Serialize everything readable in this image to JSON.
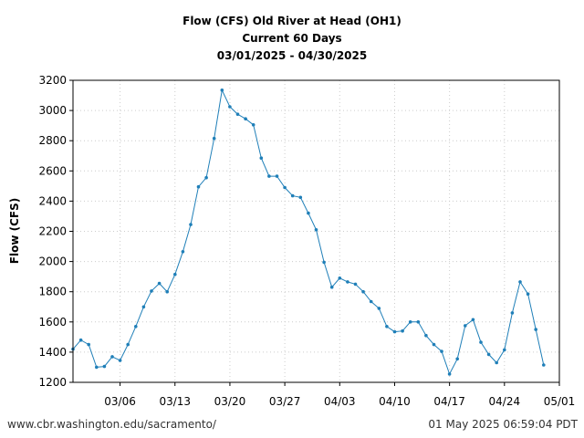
{
  "header": {
    "title_line1": "Flow (CFS) Old River at Head (OH1)",
    "title_line2": "Current 60 Days",
    "title_line3": "03/01/2025 - 04/30/2025"
  },
  "footer": {
    "source": "www.cbr.washington.edu/sacramento/",
    "timestamp": "01 May 2025 06:59:04 PDT"
  },
  "colors": {
    "series": "#1f7fb8",
    "grid": "#cccccc"
  },
  "chart_data": {
    "type": "line",
    "ylabel": "Flow (CFS)",
    "ylim": [
      1200,
      3200
    ],
    "y_ticks": [
      1200,
      1400,
      1600,
      1800,
      2000,
      2200,
      2400,
      2600,
      2800,
      3000,
      3200
    ],
    "x_range": [
      "2025-02-28",
      "2025-05-01"
    ],
    "x_ticks": [
      {
        "date": "2025-03-06",
        "label": "03/06"
      },
      {
        "date": "2025-03-13",
        "label": "03/13"
      },
      {
        "date": "2025-03-20",
        "label": "03/20"
      },
      {
        "date": "2025-03-27",
        "label": "03/27"
      },
      {
        "date": "2025-04-03",
        "label": "04/03"
      },
      {
        "date": "2025-04-10",
        "label": "04/10"
      },
      {
        "date": "2025-04-17",
        "label": "04/17"
      },
      {
        "date": "2025-04-24",
        "label": "04/24"
      },
      {
        "date": "2025-05-01",
        "label": "05/01"
      }
    ],
    "grid": true,
    "series": [
      {
        "x": [
          "2025-02-28",
          "2025-03-01",
          "2025-03-02",
          "2025-03-03",
          "2025-03-04",
          "2025-03-05",
          "2025-03-06",
          "2025-03-07",
          "2025-03-08",
          "2025-03-09",
          "2025-03-10",
          "2025-03-11",
          "2025-03-12",
          "2025-03-13",
          "2025-03-14",
          "2025-03-15",
          "2025-03-16",
          "2025-03-17",
          "2025-03-18",
          "2025-03-19",
          "2025-03-20",
          "2025-03-21",
          "2025-03-22",
          "2025-03-23",
          "2025-03-24",
          "2025-03-25",
          "2025-03-26",
          "2025-03-27",
          "2025-03-28",
          "2025-03-29",
          "2025-03-30",
          "2025-03-31",
          "2025-04-01",
          "2025-04-02",
          "2025-04-03",
          "2025-04-04",
          "2025-04-05",
          "2025-04-06",
          "2025-04-07",
          "2025-04-08",
          "2025-04-09",
          "2025-04-10",
          "2025-04-11",
          "2025-04-12",
          "2025-04-13",
          "2025-04-14",
          "2025-04-15",
          "2025-04-16",
          "2025-04-17",
          "2025-04-18",
          "2025-04-19",
          "2025-04-20",
          "2025-04-21",
          "2025-04-22",
          "2025-04-23",
          "2025-04-24",
          "2025-04-25",
          "2025-04-26",
          "2025-04-27",
          "2025-04-28",
          "2025-04-29",
          "2025-04-30"
        ],
        "values": [
          1420,
          1480,
          1450,
          1300,
          1305,
          1370,
          1345,
          1450,
          1570,
          1700,
          1805,
          1855,
          1800,
          1915,
          2065,
          2245,
          2495,
          2555,
          2815,
          3135,
          3025,
          2975,
          2945,
          2905,
          2685,
          2565,
          2565,
          2490,
          2435,
          2425,
          2320,
          2210,
          1995,
          1830,
          1890,
          1865,
          1850,
          1800,
          1735,
          1690,
          1570,
          1535,
          1540,
          1600,
          1600,
          1510,
          1450,
          1405,
          1255,
          1355,
          1575,
          1615,
          1465,
          1385,
          1330,
          1415,
          1660,
          1865,
          1785,
          1550,
          1315,
          null
        ]
      }
    ]
  }
}
